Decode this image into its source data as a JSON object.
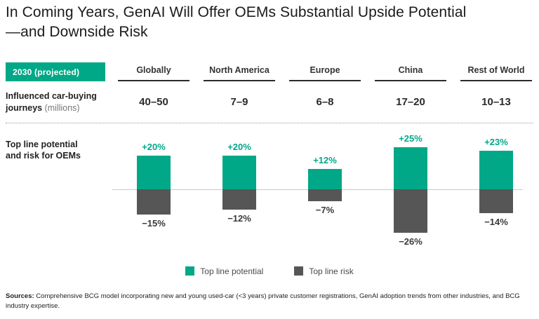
{
  "title": {
    "line1": "In Coming Years, GenAI Will Offer OEMs Substantial Upside Potential",
    "line2": "—and Downside Risk"
  },
  "badge_label": "2030 (projected)",
  "row_labels": {
    "journeys_line1": "Influenced car-buying",
    "journeys_line2": "journeys",
    "journeys_unit": "(millions)",
    "bars_line1": "Top line potential",
    "bars_line2": "and risk for OEMs"
  },
  "chart_data": {
    "type": "bar",
    "title": "Top line potential and risk for OEMs, 2030 (projected)",
    "categories": [
      "Globally",
      "North America",
      "Europe",
      "China",
      "Rest of World"
    ],
    "influenced_journeys_millions": [
      "40–50",
      "7–9",
      "6–8",
      "17–20",
      "10–13"
    ],
    "series": [
      {
        "name": "Top line potential",
        "values": [
          20,
          20,
          12,
          25,
          23
        ],
        "labels": [
          "+20%",
          "+20%",
          "+12%",
          "+25%",
          "+23%"
        ],
        "color": "#00A887"
      },
      {
        "name": "Top line risk",
        "values": [
          -15,
          -12,
          -7,
          -26,
          -14
        ],
        "labels": [
          "−15%",
          "−12%",
          "−7%",
          "−26%",
          "−14%"
        ],
        "color": "#565656"
      }
    ],
    "unit": "%",
    "ylim": [
      -26,
      25
    ],
    "grid": false,
    "legend_position": "bottom"
  },
  "sources": {
    "label": "Sources:",
    "text": "Comprehensive BCG model incorporating new and young used-car (<3 years) private customer registrations, GenAI adoption trends from other industries, and BCG industry expertise."
  },
  "colors": {
    "accent_green": "#00A887",
    "risk_gray": "#565656",
    "header_underline": "#2B2B2B"
  }
}
